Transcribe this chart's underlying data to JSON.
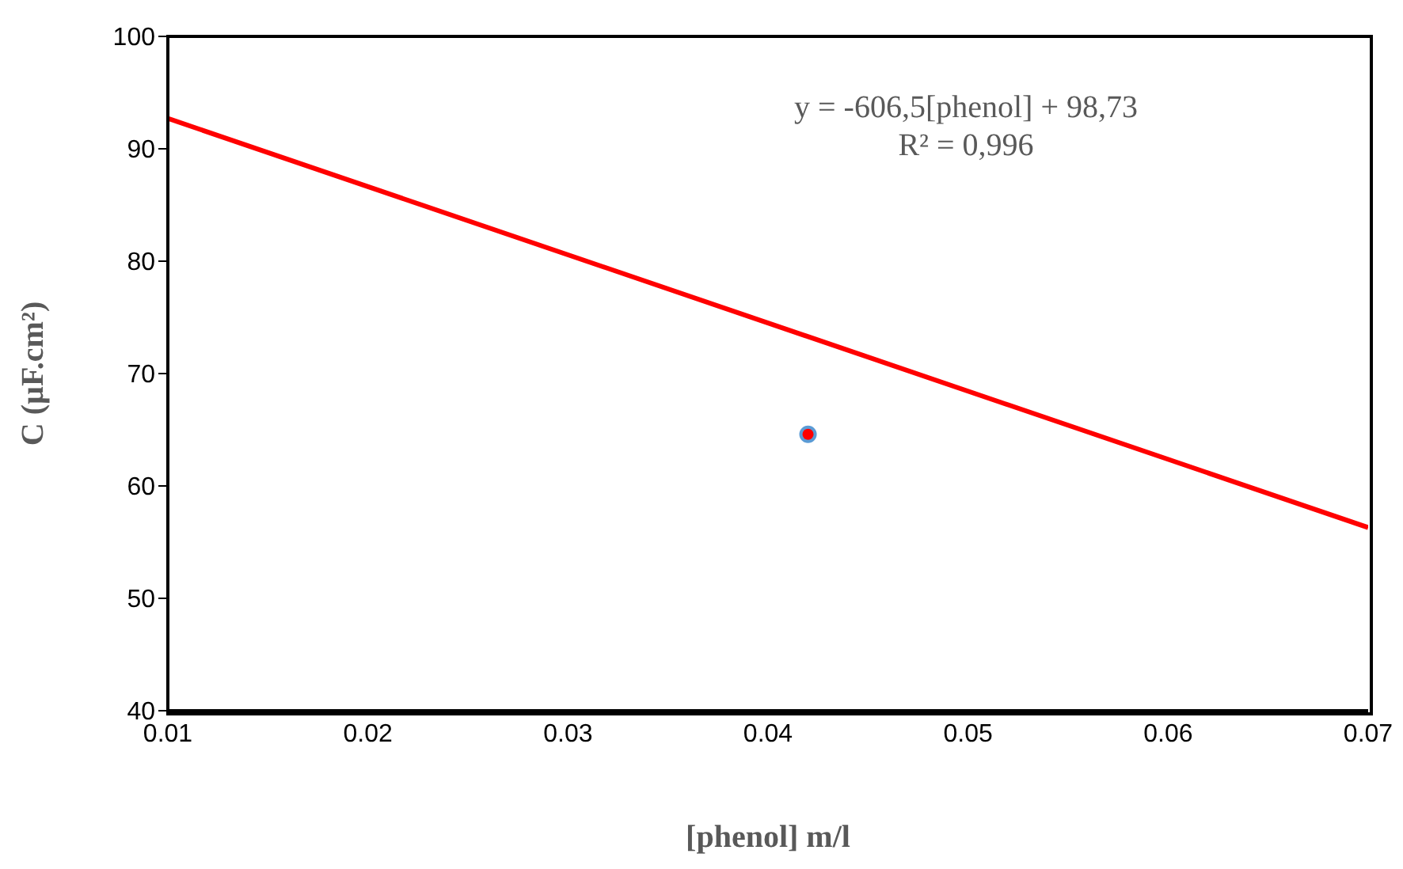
{
  "chart_data": {
    "type": "scatter",
    "xlabel": "[phenol] m/l",
    "ylabel": "C (µF.cm²)",
    "annotations": [
      "y = -606,5[phenol] + 98,73",
      "R² = 0,996"
    ],
    "xlim": [
      0.01,
      0.07
    ],
    "xticks": [
      0.01,
      0.02,
      0.03,
      0.04,
      0.05,
      0.06,
      0.07
    ],
    "ylim": [
      40,
      100
    ],
    "yticks": [
      40,
      50,
      60,
      70,
      80,
      90,
      100
    ],
    "series": [
      {
        "color": "#ff0000",
        "x": [
          0.042
        ],
        "values": [
          64.6
        ],
        "marker": "circle"
      },
      {
        "type": "line",
        "color": "#ff0000",
        "x": [
          0.01,
          0.07
        ],
        "values": [
          92.7,
          56.3
        ],
        "line_style": "solid"
      }
    ]
  }
}
